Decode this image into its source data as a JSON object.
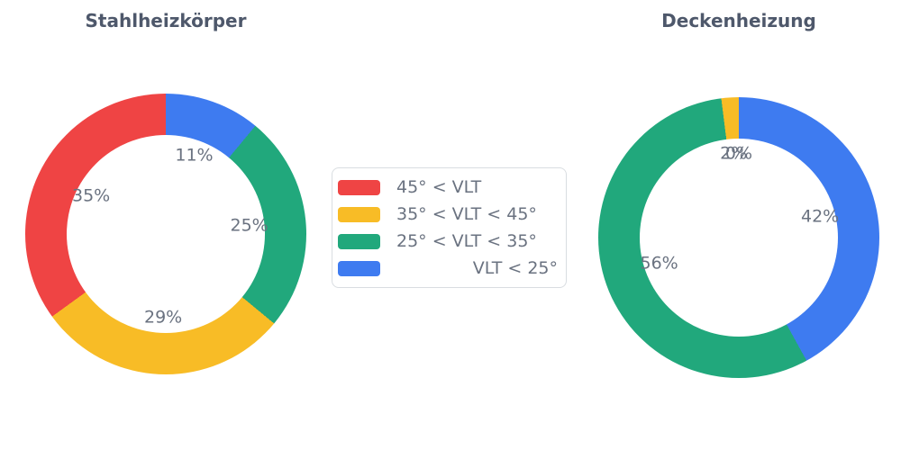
{
  "chart_data": [
    {
      "type": "pie",
      "title": "Stahlheizkörper",
      "labels": [
        "45° < VLT",
        "35° < VLT < 45°",
        "25° < VLT < 35°",
        "VLT < 25°"
      ],
      "values": [
        35,
        29,
        25,
        11
      ],
      "text_labels": [
        "35%",
        "29%",
        "25%",
        "11%"
      ],
      "colors": [
        "#EF4444",
        "#F8BC26",
        "#21A87C",
        "#3E7BF0"
      ],
      "hole": 0.7,
      "direction": "counterclockwise",
      "start_angle_deg": 90,
      "legend_position": "center-between-charts"
    },
    {
      "type": "pie",
      "title": "Deckenheizung",
      "labels": [
        "45° < VLT",
        "35° < VLT < 45°",
        "25° < VLT < 35°",
        "VLT < 25°"
      ],
      "values": [
        0,
        2,
        56,
        42
      ],
      "text_labels": [
        "0%",
        "2%",
        "56%",
        "42%"
      ],
      "colors": [
        "#EF4444",
        "#F8BC26",
        "#21A87C",
        "#3E7BF0"
      ],
      "hole": 0.7,
      "direction": "counterclockwise",
      "start_angle_deg": 90,
      "legend_position": "center-between-charts"
    }
  ],
  "legend": {
    "items": [
      {
        "label": "45° < VLT",
        "color": "#EF4444"
      },
      {
        "label": "35° < VLT < 45°",
        "color": "#F8BC26"
      },
      {
        "label": "25° < VLT < 35°",
        "color": "#21A87C"
      },
      {
        "label": "VLT < 25°",
        "color": "#3E7BF0"
      }
    ]
  },
  "style_colors": {
    "title_text": "#4E586B",
    "label_text": "#6A7280",
    "legend_border": "#D9DDE1",
    "background": "#FFFFFF"
  }
}
